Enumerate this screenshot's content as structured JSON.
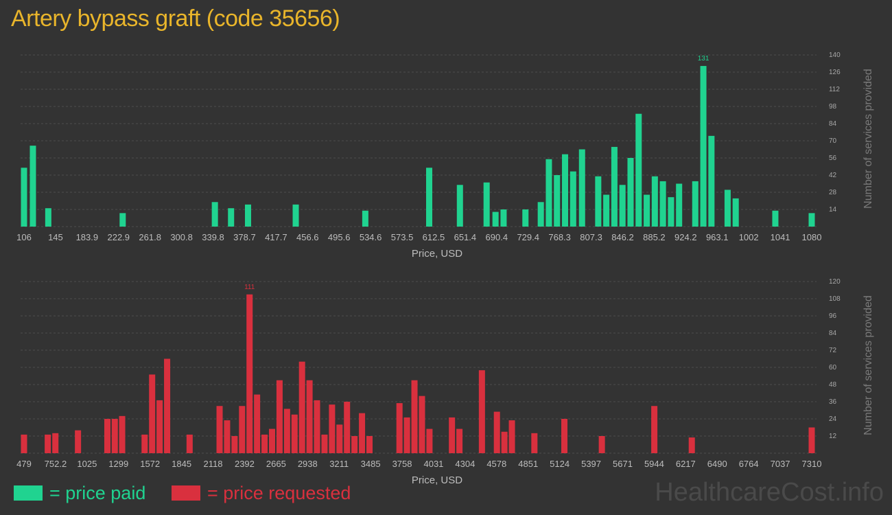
{
  "title": "Artery bypass graft (code 35656)",
  "colors": {
    "title": "#e9b52b",
    "paid": "#20d390",
    "requested": "#d9303e",
    "background": "#333333"
  },
  "legend": {
    "paid_label": "= price paid",
    "requested_label": "= price requested"
  },
  "watermark": "HealthcareCost.info",
  "chart_data": [
    {
      "type": "bar",
      "series_name": "price paid",
      "xlabel": "Price, USD",
      "ylabel": "Number of services provided",
      "x_ticks": [
        "106",
        "145",
        "183.9",
        "222.9",
        "261.8",
        "300.8",
        "339.8",
        "378.7",
        "417.7",
        "456.6",
        "495.6",
        "534.6",
        "573.5",
        "612.5",
        "651.4",
        "690.4",
        "729.4",
        "768.3",
        "807.3",
        "846.2",
        "885.2",
        "924.2",
        "963.1",
        "1002",
        "1041",
        "1080"
      ],
      "x_range": [
        106,
        1080
      ],
      "y_ticks": [
        14,
        28,
        42,
        56,
        70,
        84,
        98,
        112,
        126,
        140
      ],
      "ylim": [
        0,
        140
      ],
      "peak_label": "131",
      "grid": true,
      "bars": [
        {
          "x": 106,
          "y": 48
        },
        {
          "x": 117,
          "y": 66
        },
        {
          "x": 136,
          "y": 15
        },
        {
          "x": 228,
          "y": 11
        },
        {
          "x": 342,
          "y": 20
        },
        {
          "x": 362,
          "y": 15
        },
        {
          "x": 383,
          "y": 18
        },
        {
          "x": 442,
          "y": 18
        },
        {
          "x": 528,
          "y": 13
        },
        {
          "x": 607,
          "y": 48
        },
        {
          "x": 645,
          "y": 34
        },
        {
          "x": 678,
          "y": 36
        },
        {
          "x": 689,
          "y": 12
        },
        {
          "x": 699,
          "y": 14
        },
        {
          "x": 726,
          "y": 14
        },
        {
          "x": 745,
          "y": 20
        },
        {
          "x": 755,
          "y": 55
        },
        {
          "x": 765,
          "y": 42
        },
        {
          "x": 775,
          "y": 59
        },
        {
          "x": 785,
          "y": 45
        },
        {
          "x": 796,
          "y": 63
        },
        {
          "x": 816,
          "y": 41
        },
        {
          "x": 826,
          "y": 26
        },
        {
          "x": 836,
          "y": 65
        },
        {
          "x": 846,
          "y": 34
        },
        {
          "x": 856,
          "y": 56
        },
        {
          "x": 866,
          "y": 92
        },
        {
          "x": 876,
          "y": 26
        },
        {
          "x": 886,
          "y": 41
        },
        {
          "x": 896,
          "y": 37
        },
        {
          "x": 906,
          "y": 24
        },
        {
          "x": 916,
          "y": 35
        },
        {
          "x": 936,
          "y": 37
        },
        {
          "x": 946,
          "y": 131
        },
        {
          "x": 956,
          "y": 74
        },
        {
          "x": 976,
          "y": 30
        },
        {
          "x": 986,
          "y": 23
        },
        {
          "x": 1035,
          "y": 13
        },
        {
          "x": 1080,
          "y": 11
        }
      ]
    },
    {
      "type": "bar",
      "series_name": "price requested",
      "xlabel": "Price, USD",
      "ylabel": "Number of services provided",
      "x_ticks": [
        "479",
        "752.2",
        "1025",
        "1299",
        "1572",
        "1845",
        "2118",
        "2392",
        "2665",
        "2938",
        "3211",
        "3485",
        "3758",
        "4031",
        "4304",
        "4578",
        "4851",
        "5124",
        "5397",
        "5671",
        "5944",
        "6217",
        "6490",
        "6764",
        "7037",
        "7310"
      ],
      "x_range": [
        479,
        7310
      ],
      "y_ticks": [
        12,
        24,
        36,
        48,
        60,
        72,
        84,
        96,
        108,
        120
      ],
      "ylim": [
        0,
        120
      ],
      "peak_label": "111",
      "grid": true,
      "bars": [
        {
          "x": 479,
          "y": 13
        },
        {
          "x": 685,
          "y": 13
        },
        {
          "x": 751,
          "y": 14
        },
        {
          "x": 947,
          "y": 16
        },
        {
          "x": 1202,
          "y": 24
        },
        {
          "x": 1266,
          "y": 24
        },
        {
          "x": 1330,
          "y": 26
        },
        {
          "x": 1525,
          "y": 13
        },
        {
          "x": 1590,
          "y": 55
        },
        {
          "x": 1655,
          "y": 37
        },
        {
          "x": 1720,
          "y": 66
        },
        {
          "x": 1915,
          "y": 13
        },
        {
          "x": 2175,
          "y": 33
        },
        {
          "x": 2240,
          "y": 23
        },
        {
          "x": 2305,
          "y": 12
        },
        {
          "x": 2370,
          "y": 33
        },
        {
          "x": 2435,
          "y": 111
        },
        {
          "x": 2500,
          "y": 41
        },
        {
          "x": 2565,
          "y": 13
        },
        {
          "x": 2630,
          "y": 17
        },
        {
          "x": 2695,
          "y": 51
        },
        {
          "x": 2760,
          "y": 31
        },
        {
          "x": 2825,
          "y": 27
        },
        {
          "x": 2890,
          "y": 64
        },
        {
          "x": 2955,
          "y": 51
        },
        {
          "x": 3020,
          "y": 37
        },
        {
          "x": 3085,
          "y": 13
        },
        {
          "x": 3150,
          "y": 34
        },
        {
          "x": 3215,
          "y": 20
        },
        {
          "x": 3280,
          "y": 36
        },
        {
          "x": 3345,
          "y": 12
        },
        {
          "x": 3410,
          "y": 28
        },
        {
          "x": 3475,
          "y": 12
        },
        {
          "x": 3735,
          "y": 35
        },
        {
          "x": 3800,
          "y": 25
        },
        {
          "x": 3865,
          "y": 51
        },
        {
          "x": 3930,
          "y": 40
        },
        {
          "x": 3995,
          "y": 17
        },
        {
          "x": 4190,
          "y": 25
        },
        {
          "x": 4255,
          "y": 17
        },
        {
          "x": 4450,
          "y": 58
        },
        {
          "x": 4580,
          "y": 29
        },
        {
          "x": 4645,
          "y": 15
        },
        {
          "x": 4710,
          "y": 23
        },
        {
          "x": 4905,
          "y": 14
        },
        {
          "x": 5165,
          "y": 24
        },
        {
          "x": 5490,
          "y": 12
        },
        {
          "x": 5945,
          "y": 33
        },
        {
          "x": 6270,
          "y": 11
        },
        {
          "x": 7310,
          "y": 18
        }
      ]
    }
  ]
}
